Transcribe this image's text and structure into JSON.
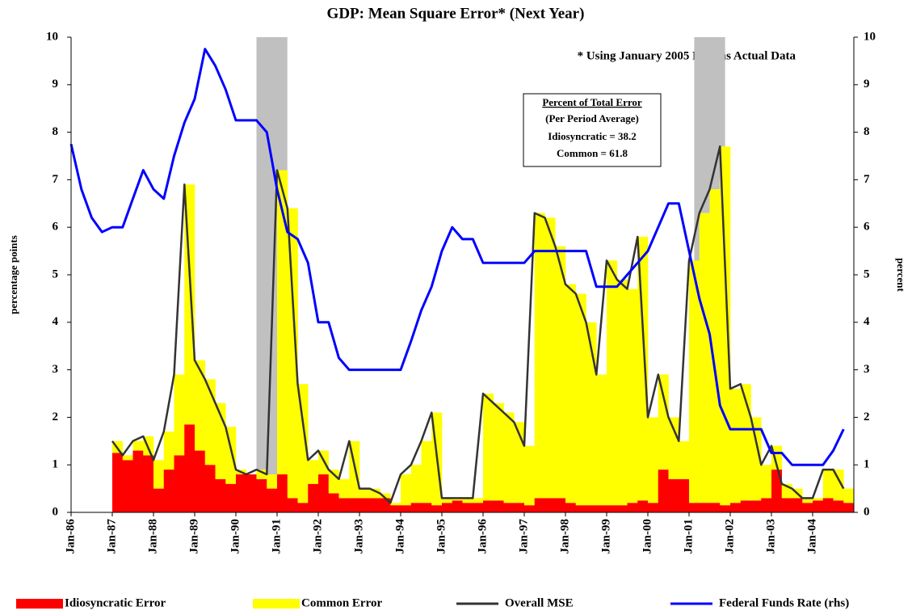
{
  "chart_data": {
    "type": "combo",
    "title": "GDP: Mean Square Error* (Next Year)",
    "annotation": "* Using January 2005 Data as Actual Data",
    "info_box": [
      "Percent of Total Error",
      "(Per Period Average)",
      "Idiosyncratic = 38.2",
      "Common = 61.8"
    ],
    "y_label": "percentage points",
    "y2_label": "percent",
    "categories": [
      "Jan-86",
      null,
      null,
      null,
      "Jan-87",
      null,
      null,
      null,
      "Jan-88",
      null,
      null,
      null,
      "Jan-89",
      null,
      null,
      null,
      "Jan-90",
      null,
      null,
      null,
      "Jan-91",
      null,
      null,
      null,
      "Jan-92",
      null,
      null,
      null,
      "Jan-93",
      null,
      null,
      null,
      "Jan-94",
      null,
      null,
      null,
      "Jan-95",
      null,
      null,
      null,
      "Jan-96",
      null,
      null,
      null,
      "Jan-97",
      null,
      null,
      null,
      "Jan-98",
      null,
      null,
      null,
      "Jan-99",
      null,
      null,
      null,
      "Jan-00",
      null,
      null,
      null,
      "Jan-01",
      null,
      null,
      null,
      "Jan-02",
      null,
      null,
      null,
      "Jan-03",
      null,
      null,
      null,
      "Jan-04",
      null,
      null,
      null
    ],
    "shaded_ranges": [
      [
        18,
        21
      ],
      [
        60.5,
        63.5
      ]
    ],
    "shade_color": "#c0c0c0",
    "series": [
      {
        "name": "Idiosyncratic Error",
        "type": "bar",
        "color": "#ff0000",
        "values": [
          null,
          null,
          null,
          null,
          1.25,
          1.1,
          1.3,
          1.2,
          0.5,
          0.9,
          1.2,
          1.85,
          1.3,
          1.0,
          0.7,
          0.6,
          0.8,
          0.8,
          0.7,
          0.5,
          0.8,
          0.3,
          0.2,
          0.6,
          0.8,
          0.4,
          0.3,
          0.3,
          0.3,
          0.3,
          0.3,
          0.15,
          0.15,
          0.2,
          0.2,
          0.15,
          0.2,
          0.25,
          0.2,
          0.2,
          0.25,
          0.25,
          0.2,
          0.2,
          0.15,
          0.3,
          0.3,
          0.3,
          0.2,
          0.15,
          0.15,
          0.15,
          0.15,
          0.15,
          0.2,
          0.25,
          0.2,
          0.9,
          0.7,
          0.7,
          0.2,
          0.2,
          0.2,
          0.15,
          0.2,
          0.25,
          0.25,
          0.3,
          0.9,
          0.3,
          0.3,
          0.2,
          0.25,
          0.3,
          0.25,
          0.2
        ]
      },
      {
        "name": "Common Error",
        "type": "bar",
        "color": "#ffff00",
        "values": [
          null,
          null,
          null,
          null,
          0.25,
          0.1,
          0.2,
          0.4,
          0.6,
          0.8,
          1.7,
          5.05,
          1.9,
          1.8,
          1.6,
          1.2,
          0.1,
          0,
          0.2,
          0.3,
          6.4,
          6.1,
          2.5,
          0.5,
          0.5,
          0.5,
          0.4,
          1.2,
          0.2,
          0.2,
          0.1,
          0.05,
          0.65,
          0.8,
          1.3,
          1.95,
          0.1,
          0.05,
          0.1,
          0.1,
          2.25,
          2.05,
          1.9,
          1.7,
          1.25,
          6.0,
          5.9,
          5.3,
          4.6,
          4.45,
          3.85,
          2.75,
          5.15,
          4.75,
          4.5,
          5.55,
          1.8,
          2.0,
          1.3,
          0.8,
          5.1,
          6.1,
          6.6,
          7.55,
          2.4,
          2.45,
          1.75,
          0.7,
          0.5,
          0.3,
          0.2,
          0.1,
          0.05,
          0.6,
          0.65,
          0.3
        ]
      },
      {
        "name": "Overall MSE",
        "type": "line",
        "color": "#333333",
        "values": [
          null,
          null,
          null,
          null,
          1.5,
          1.2,
          1.5,
          1.6,
          1.1,
          1.7,
          2.9,
          6.9,
          3.2,
          2.8,
          2.3,
          1.8,
          0.9,
          0.8,
          0.9,
          0.8,
          7.2,
          6.4,
          2.7,
          1.1,
          1.3,
          0.9,
          0.7,
          1.5,
          0.5,
          0.5,
          0.4,
          0.2,
          0.8,
          1.0,
          1.5,
          2.1,
          0.3,
          0.3,
          0.3,
          0.3,
          2.5,
          2.3,
          2.1,
          1.9,
          1.4,
          6.3,
          6.2,
          5.6,
          4.8,
          4.6,
          4.0,
          2.9,
          5.3,
          4.9,
          4.7,
          5.8,
          2.0,
          2.9,
          2.0,
          1.5,
          5.3,
          6.3,
          6.8,
          7.7,
          2.6,
          2.7,
          2.0,
          1.0,
          1.4,
          0.6,
          0.5,
          0.3,
          0.3,
          0.9,
          0.9,
          0.5
        ]
      },
      {
        "name": "Federal Funds Rate (rhs)",
        "type": "line",
        "axis": "y2",
        "color": "#0000ff",
        "values": [
          7.75,
          6.8,
          6.2,
          5.9,
          6.0,
          6.0,
          6.6,
          7.2,
          6.8,
          6.6,
          7.5,
          8.2,
          8.7,
          9.75,
          9.4,
          8.9,
          8.25,
          8.25,
          8.25,
          8.0,
          6.8,
          5.9,
          5.75,
          5.25,
          4.0,
          4.0,
          3.25,
          3.0,
          3.0,
          3.0,
          3.0,
          3.0,
          3.0,
          3.6,
          4.25,
          4.75,
          5.5,
          6.0,
          5.75,
          5.75,
          5.25,
          5.25,
          5.25,
          5.25,
          5.25,
          5.5,
          5.5,
          5.5,
          5.5,
          5.5,
          5.5,
          4.75,
          4.75,
          4.75,
          5.0,
          5.25,
          5.5,
          6.0,
          6.5,
          6.5,
          5.5,
          4.5,
          3.75,
          2.25,
          1.75,
          1.75,
          1.75,
          1.75,
          1.25,
          1.25,
          1.0,
          1.0,
          1.0,
          1.0,
          1.3,
          1.75
        ]
      }
    ],
    "ylim": [
      0,
      10
    ],
    "yticks": [
      0,
      1,
      2,
      3,
      4,
      5,
      6,
      7,
      8,
      9,
      10
    ],
    "y2lim": [
      0,
      10
    ],
    "y2ticks": [
      0,
      1,
      2,
      3,
      4,
      5,
      6,
      7,
      8,
      9,
      10
    ]
  }
}
